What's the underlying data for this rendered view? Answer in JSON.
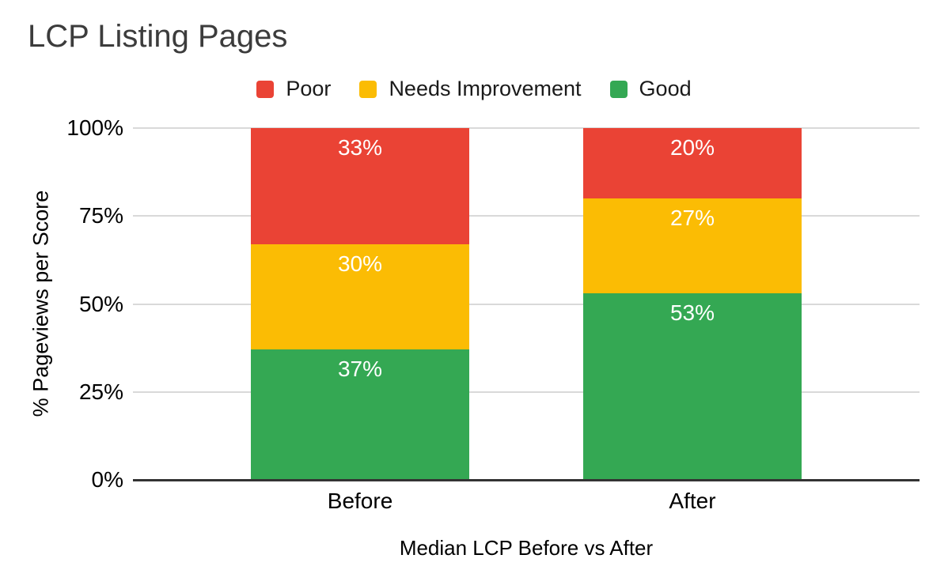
{
  "chart_data": {
    "type": "bar",
    "stacked": true,
    "title": "LCP Listing Pages",
    "xlabel": "Median LCP Before vs After",
    "ylabel": "% Pageviews per Score",
    "categories": [
      "Before",
      "After"
    ],
    "series": [
      {
        "name": "Poor",
        "color": "#EA4335",
        "values": [
          33,
          20
        ]
      },
      {
        "name": "Needs Improvement",
        "color": "#FBBC04",
        "values": [
          30,
          27
        ]
      },
      {
        "name": "Good",
        "color": "#34A853",
        "values": [
          37,
          53
        ]
      }
    ],
    "value_suffix": "%",
    "ylim": [
      0,
      100
    ],
    "yticks": [
      0,
      25,
      50,
      75,
      100
    ],
    "ytick_labels": [
      "0%",
      "25%",
      "50%",
      "75%",
      "100%"
    ],
    "grid": true,
    "legend_position": "top",
    "legend": [
      "Poor",
      "Needs Improvement",
      "Good"
    ]
  },
  "colors": {
    "poor": "#EA4335",
    "needs_improvement": "#FBBC04",
    "good": "#34A853",
    "title_text": "#3c3c3c",
    "axis_text": "#000000",
    "gridline": "#d9d9d9",
    "axis_line": "#333333",
    "data_label_text": "#ffffff",
    "background": "#ffffff"
  }
}
